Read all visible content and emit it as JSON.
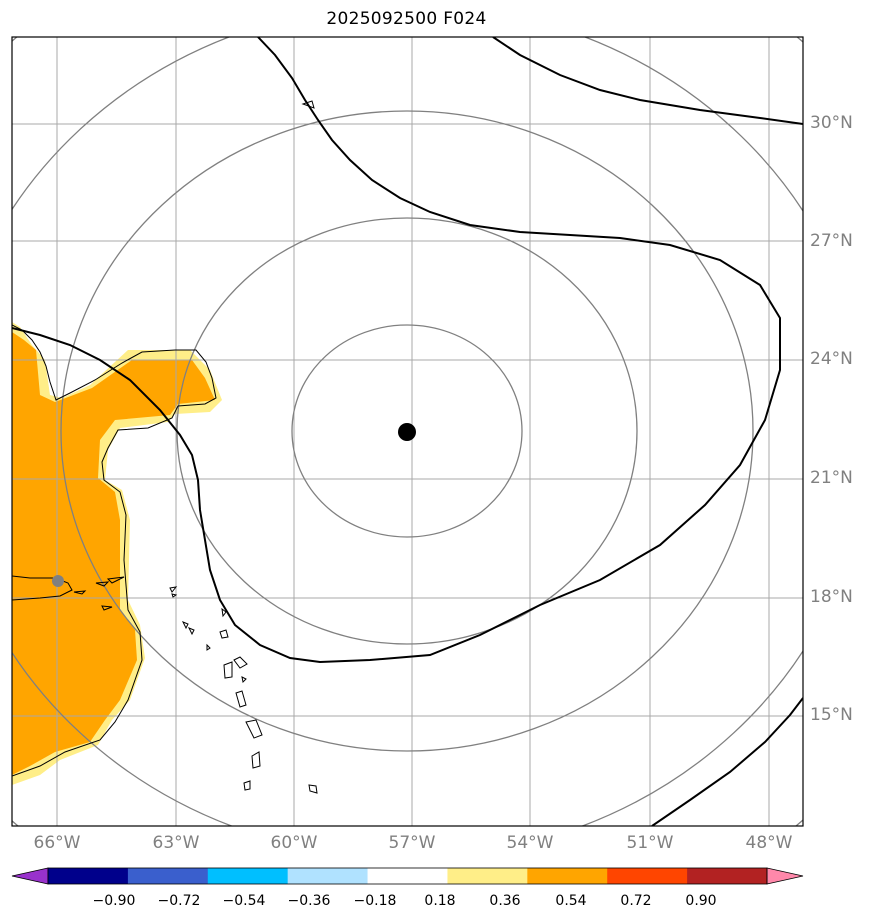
{
  "title": "2025092500 F024",
  "map": {
    "extent": {
      "lon_min": -67.1,
      "lon_max": -47.1,
      "lat_min": 12.5,
      "lat_max": 32.3
    },
    "lat_ticks": [
      "30°N",
      "27°N",
      "24°N",
      "21°N",
      "18°N",
      "15°N"
    ],
    "lon_ticks": [
      "66°W",
      "63°W",
      "60°W",
      "57°W",
      "54°W",
      "51°W",
      "48°W"
    ],
    "gridlines": true,
    "center_marker": {
      "lon": -57.1,
      "lat": 22.2,
      "color": "#000000"
    },
    "station_marker": {
      "lon": -66.0,
      "lat": 18.4,
      "color": "#808080"
    },
    "range_rings": "concentric circles around center",
    "fill_color": "#ffa500",
    "fill_edge_color": "#ffee88"
  },
  "colorbar": {
    "colors": [
      "#9932cc",
      "#00008b",
      "#3a5fcd",
      "#00bfff",
      "#b0e2ff",
      "#ffffff",
      "#ffee88",
      "#ffa500",
      "#ff4500",
      "#b22222",
      "#ff88aa"
    ],
    "ticks": [
      "−0.90",
      "−0.72",
      "−0.54",
      "−0.36",
      "−0.18",
      "0.18",
      "0.36",
      "0.54",
      "0.72",
      "0.90"
    ]
  }
}
